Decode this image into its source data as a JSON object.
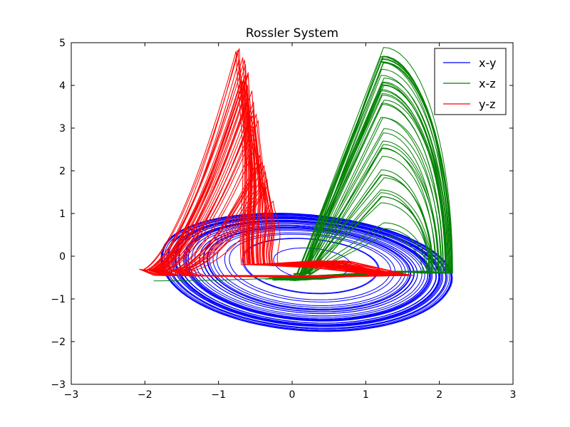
{
  "chart_data": {
    "type": "line",
    "title": "Rossler System",
    "xlabel": "",
    "ylabel": "",
    "xlim": [
      -3,
      3
    ],
    "ylim": [
      -3,
      5
    ],
    "xticks": [
      -3,
      -2,
      -1,
      0,
      1,
      2,
      3
    ],
    "yticks": [
      -3,
      -2,
      -1,
      0,
      1,
      2,
      3,
      4,
      5
    ],
    "xtick_labels": [
      "−3",
      "−2",
      "−1",
      "0",
      "1",
      "2",
      "3"
    ],
    "ytick_labels": [
      "−3",
      "−2",
      "−1",
      "0",
      "1",
      "2",
      "3",
      "4",
      "5"
    ],
    "grid": false,
    "legend_position": "top-right",
    "series": [
      {
        "name": "x-y",
        "color": "#0000ff",
        "shape": "spiral",
        "center": [
          0.2,
          -0.25
        ],
        "x_range": [
          -1.95,
          2.25
        ],
        "y_range": [
          -2.15,
          1.65
        ],
        "turns": 46
      },
      {
        "name": "x-z",
        "color": "#008000",
        "shape": "lobes",
        "x_range": [
          -1.9,
          2.25
        ],
        "z_range": [
          -0.6,
          4.9
        ],
        "loops": 46
      },
      {
        "name": "y-z",
        "color": "#ff0000",
        "shape": "spikes",
        "y_range": [
          -2.15,
          1.65
        ],
        "z_range": [
          -0.55,
          4.9
        ],
        "loops": 46
      }
    ]
  }
}
